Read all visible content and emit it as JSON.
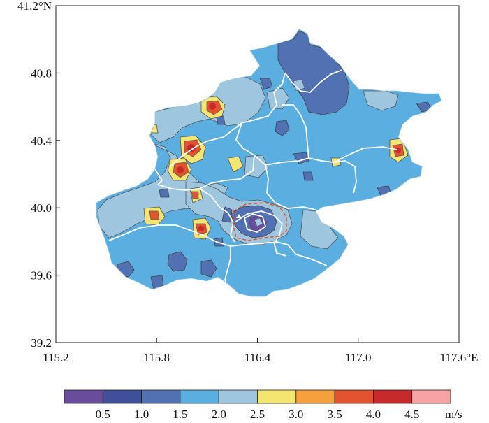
{
  "chart_data": {
    "type": "heatmap",
    "x_axis": {
      "range": [
        115.2,
        117.6
      ],
      "ticks": [
        115.2,
        115.8,
        116.4,
        117.0,
        117.6
      ],
      "tick_labels": [
        "115.2",
        "115.8",
        "116.4",
        "117.0",
        "117.6°E"
      ]
    },
    "y_axis": {
      "range": [
        39.2,
        41.2
      ],
      "ticks": [
        39.2,
        39.6,
        40.0,
        40.4,
        40.8,
        41.2
      ],
      "tick_labels": [
        "39.2",
        "39.6",
        "40.0",
        "40.4",
        "40.8",
        "41.2°N"
      ]
    },
    "colorbar": {
      "boundaries": [
        "0.5",
        "1.0",
        "1.5",
        "2.0",
        "2.5",
        "3.0",
        "3.5",
        "4.0",
        "4.5"
      ],
      "unit": "m/s",
      "colors": [
        "#6a4c9c",
        "#3f4f9a",
        "#5271b3",
        "#5aaee0",
        "#9ec6df",
        "#f3e56f",
        "#f4a03c",
        "#e4532f",
        "#c62a2a",
        "#f7a3a3"
      ]
    },
    "field_colors": {
      "base": "#5aaee0",
      "low": "#5271b3",
      "very_low": "#6a4c9c",
      "mid": "#9ec6df",
      "moderate": "#f3e56f",
      "high": "#e4532f",
      "very_high": "#c62a2a"
    },
    "annotations": {
      "district_boundaries": "#ffffff",
      "urban_ring_road": "#e4532f"
    }
  }
}
